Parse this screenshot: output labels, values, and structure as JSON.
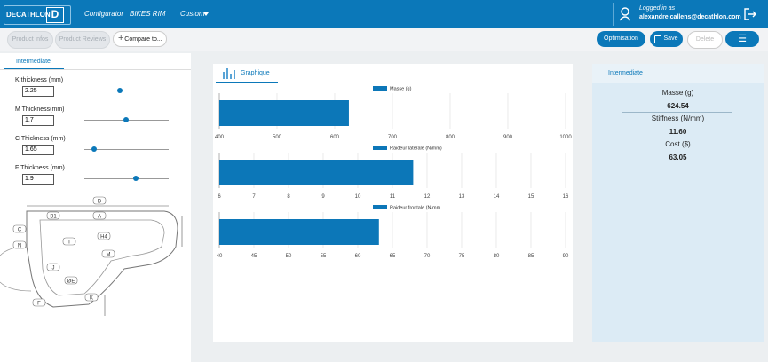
{
  "header": {
    "brand": "DECATHLON",
    "nav": [
      "Configurator",
      "BIKES RIM",
      "Custom"
    ],
    "logged_in": "Logged in as",
    "user": "alexandre.callens@decathlon.com"
  },
  "toolbar": {
    "left": [
      "Product infos",
      "Product Reviews",
      "Compare to..."
    ],
    "right": [
      "Optimisation",
      "Save",
      "Delete"
    ]
  },
  "left_panel": {
    "tab": "Intermediate",
    "params": [
      {
        "label": "K thickness (mm)",
        "value": 2.25
      },
      {
        "label": "M Thickness(mm)",
        "value": 1.7
      },
      {
        "label": "C Thickness (mm)",
        "value": 1.65
      },
      {
        "label": "F Thickness (mm)",
        "value": 1.9
      }
    ],
    "diagram_labels": [
      "D",
      "A",
      "B1",
      "C",
      "N",
      "I",
      "H4",
      "M",
      "J",
      "ØE",
      "F",
      "K"
    ]
  },
  "graph_tab": "Graphique",
  "chart_data": [
    {
      "type": "bar",
      "orientation": "horizontal",
      "series": [
        {
          "name": "Masse (g)",
          "color": "#0c77b8",
          "values": [
            624.54
          ]
        }
      ],
      "xlim": [
        400,
        1000
      ],
      "xticks": [
        400,
        500,
        600,
        700,
        800,
        900,
        1000
      ],
      "grid": true
    },
    {
      "type": "bar",
      "orientation": "horizontal",
      "series": [
        {
          "name": "Raideur laterale (N/mm)",
          "color": "#0c77b8",
          "values": [
            11.6
          ]
        }
      ],
      "xlim": [
        6,
        16
      ],
      "xticks": [
        6,
        7,
        8,
        9,
        10,
        11,
        12,
        13,
        14,
        15,
        16
      ],
      "grid": true
    },
    {
      "type": "bar",
      "orientation": "horizontal",
      "series": [
        {
          "name": "Raideur frontale (N/mm",
          "color": "#0c77b8",
          "values": [
            63.05
          ]
        }
      ],
      "xlim": [
        40,
        90
      ],
      "xticks": [
        40,
        45,
        50,
        55,
        60,
        65,
        70,
        75,
        80,
        85,
        90
      ],
      "grid": true
    }
  ],
  "right_panel": {
    "tab": "Intermediate",
    "metrics": [
      {
        "label": "Masse (g)",
        "value": "624.54"
      },
      {
        "label": "Stiffness (N/mm)",
        "value": "11.60"
      },
      {
        "label": "Cost ($)",
        "value": "63.05"
      }
    ]
  }
}
